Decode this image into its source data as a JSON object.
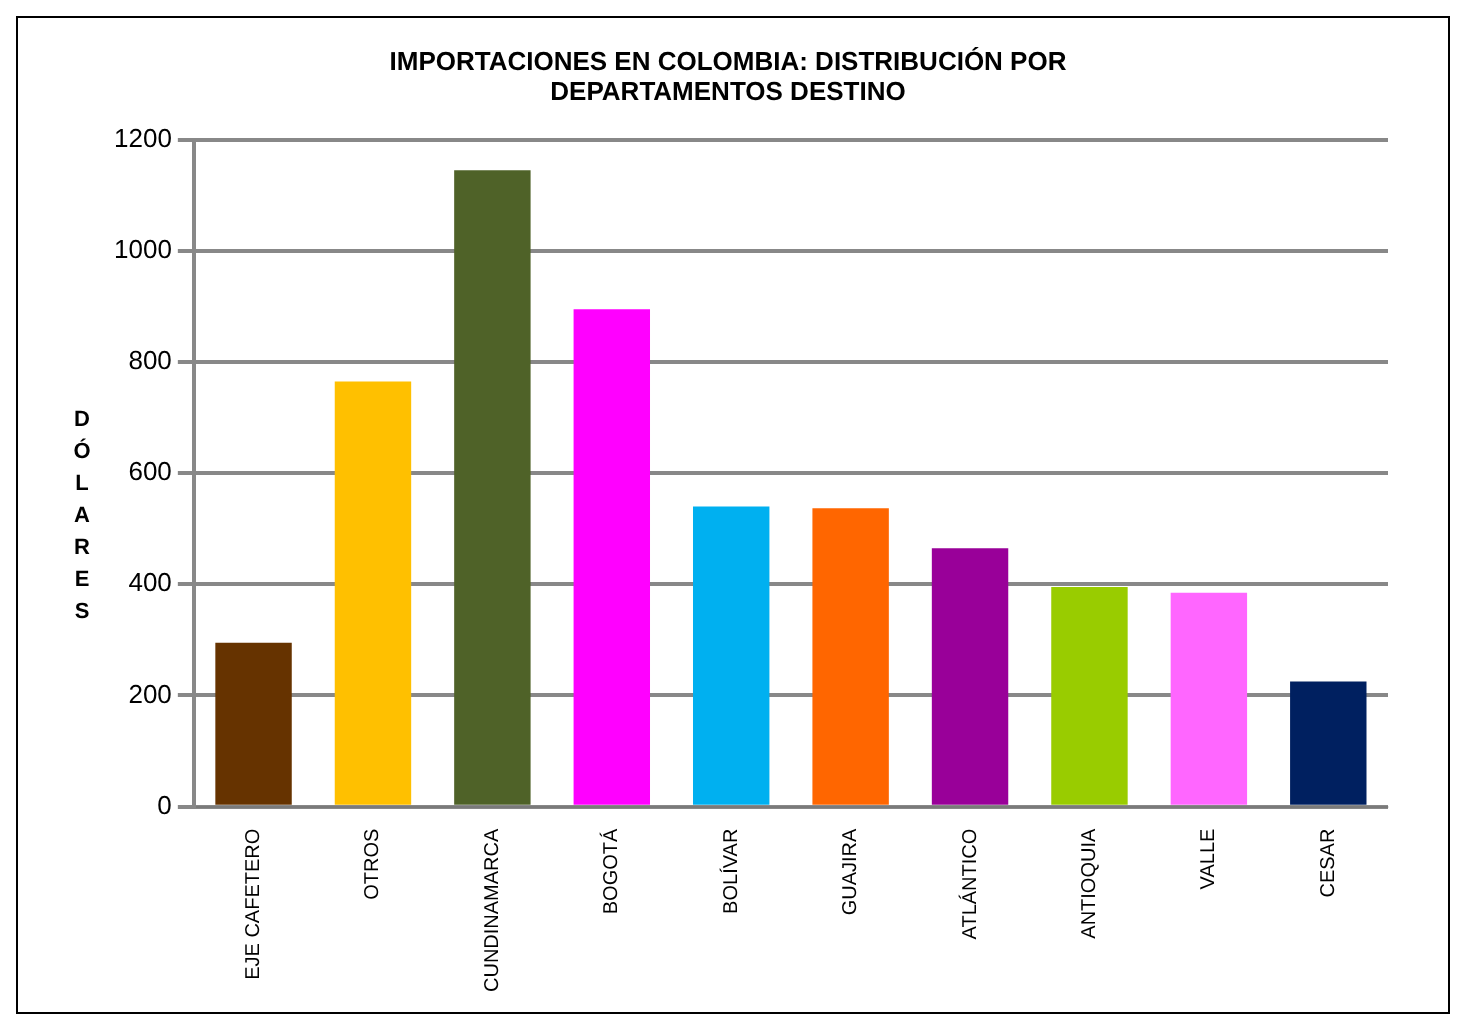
{
  "chart_data": {
    "type": "bar",
    "title": "IMPORTACIONES EN COLOMBIA: DISTRIBUCIÓN POR DEPARTAMENTOS DESTINO",
    "ylabel": "DÓLARES",
    "categories": [
      "EJE CAFETERO",
      "OTROS",
      "CUNDINAMARCA",
      "BOGOTÁ",
      "BOLÍVAR",
      "GUAJIRA",
      "ATLÁNTICO",
      "ANTIOQUIA",
      "VALLE",
      "CESAR"
    ],
    "values": [
      295,
      765,
      1145,
      895,
      540,
      537,
      465,
      395,
      385,
      225
    ],
    "colors": [
      "#663300",
      "#ffc000",
      "#4f6228",
      "#ff00ff",
      "#00b0f0",
      "#ff6600",
      "#990099",
      "#99cc00",
      "#ff66ff",
      "#002060"
    ],
    "ylim": [
      0,
      1200
    ],
    "yticks": [
      0,
      200,
      400,
      600,
      800,
      1000,
      1200
    ],
    "grid": true
  }
}
